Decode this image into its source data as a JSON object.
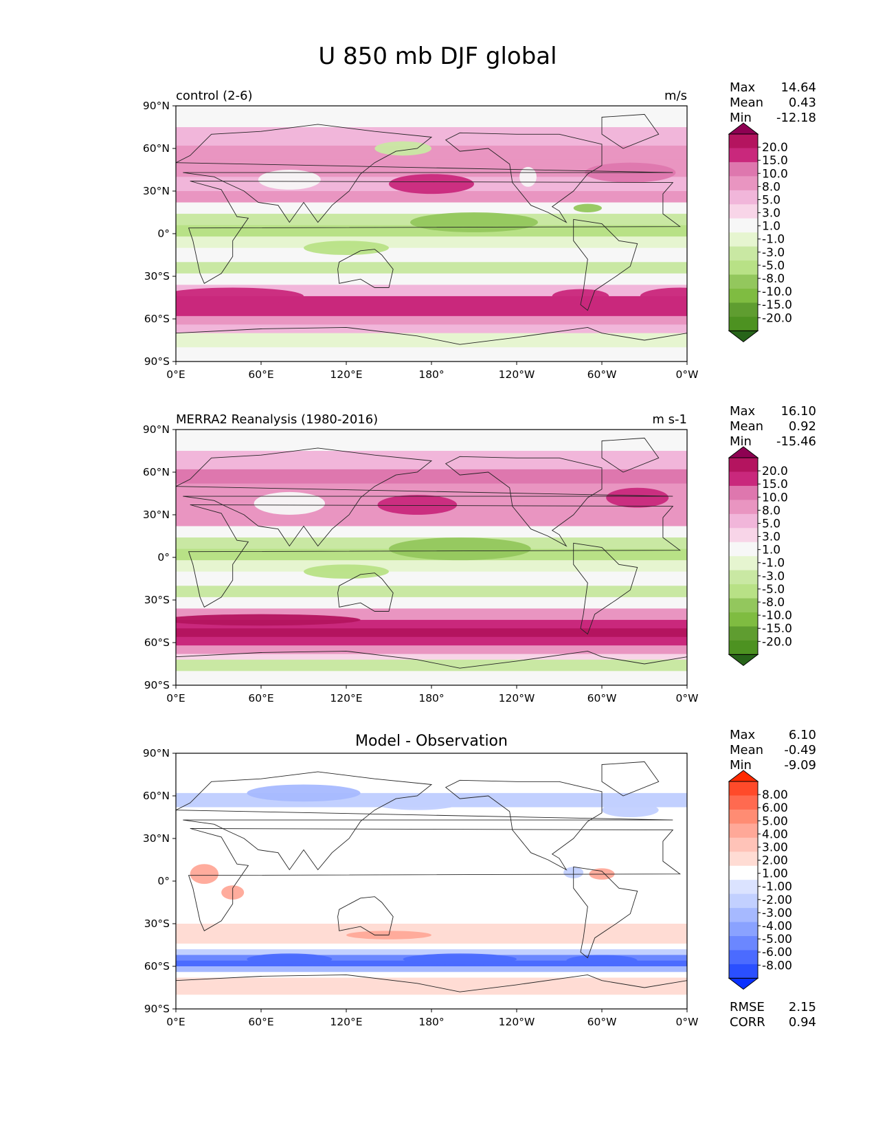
{
  "title": "U 850 mb DJF global",
  "chart_data": [
    {
      "type": "heatmap",
      "name": "control",
      "title_left": "control (2-6)",
      "title_right": "m/s",
      "lon_ticks": [
        "0°E",
        "60°E",
        "120°E",
        "180°",
        "120°W",
        "60°W",
        "0°W"
      ],
      "lat_ticks": [
        "90°N",
        "60°N",
        "30°N",
        "0°",
        "30°S",
        "60°S",
        "90°S"
      ],
      "xlim": [
        0,
        360
      ],
      "ylim": [
        -90,
        90
      ],
      "stats": [
        {
          "label": "Max",
          "value": "14.64"
        },
        {
          "label": "Mean",
          "value": "0.43"
        },
        {
          "label": "Min",
          "value": "-12.18"
        }
      ],
      "colorbar": {
        "levels": [
          "20.0",
          "15.0",
          "10.0",
          "8.0",
          "5.0",
          "3.0",
          "1.0",
          "-1.0",
          "-3.0",
          "-5.0",
          "-8.0",
          "-10.0",
          "-15.0",
          "-20.0"
        ],
        "colors": [
          "#8e0152",
          "#b4145f",
          "#c9287c",
          "#de77ae",
          "#e995c1",
          "#f1b6da",
          "#f8d5e8",
          "#f7f7f7",
          "#e6f5d0",
          "#c9e8a3",
          "#b8e186",
          "#93c75d",
          "#7fbc41",
          "#5f9d30",
          "#4d9221",
          "#276419"
        ]
      }
    },
    {
      "type": "heatmap",
      "name": "observation",
      "title_left": "MERRA2 Reanalysis (1980-2016)",
      "title_right": "m s-1",
      "lon_ticks": [
        "0°E",
        "60°E",
        "120°E",
        "180°",
        "120°W",
        "60°W",
        "0°W"
      ],
      "lat_ticks": [
        "90°N",
        "60°N",
        "30°N",
        "0°",
        "30°S",
        "60°S",
        "90°S"
      ],
      "xlim": [
        0,
        360
      ],
      "ylim": [
        -90,
        90
      ],
      "stats": [
        {
          "label": "Max",
          "value": "16.10"
        },
        {
          "label": "Mean",
          "value": "0.92"
        },
        {
          "label": "Min",
          "value": "-15.46"
        }
      ],
      "colorbar": {
        "levels": [
          "20.0",
          "15.0",
          "10.0",
          "8.0",
          "5.0",
          "3.0",
          "1.0",
          "-1.0",
          "-3.0",
          "-5.0",
          "-8.0",
          "-10.0",
          "-15.0",
          "-20.0"
        ],
        "colors": [
          "#8e0152",
          "#b4145f",
          "#c9287c",
          "#de77ae",
          "#e995c1",
          "#f1b6da",
          "#f8d5e8",
          "#f7f7f7",
          "#e6f5d0",
          "#c9e8a3",
          "#b8e186",
          "#93c75d",
          "#7fbc41",
          "#5f9d30",
          "#4d9221",
          "#276419"
        ]
      }
    },
    {
      "type": "heatmap",
      "name": "difference",
      "title_center": "Model - Observation",
      "lon_ticks": [
        "0°E",
        "60°E",
        "120°E",
        "180°",
        "120°W",
        "60°W",
        "0°W"
      ],
      "lat_ticks": [
        "90°N",
        "60°N",
        "30°N",
        "0°",
        "30°S",
        "60°S",
        "90°S"
      ],
      "xlim": [
        0,
        360
      ],
      "ylim": [
        -90,
        90
      ],
      "stats": [
        {
          "label": "Max",
          "value": "6.10"
        },
        {
          "label": "Mean",
          "value": "-0.49"
        },
        {
          "label": "Min",
          "value": "-9.09"
        }
      ],
      "extra_stats": [
        {
          "label": "RMSE",
          "value": "2.15"
        },
        {
          "label": "CORR",
          "value": "0.94"
        }
      ],
      "colorbar": {
        "levels": [
          "8.00",
          "6.00",
          "5.00",
          "4.00",
          "3.00",
          "2.00",
          "1.00",
          "-1.00",
          "-2.00",
          "-3.00",
          "-4.00",
          "-5.00",
          "-6.00",
          "-8.00"
        ],
        "colors": [
          "#ff2a00",
          "#ff4a2a",
          "#ff6a50",
          "#ff8c73",
          "#ffa898",
          "#ffc3b8",
          "#ffdcd4",
          "#ffffff",
          "#dbe3ff",
          "#c2d0ff",
          "#a6b9ff",
          "#8aa2ff",
          "#6b87ff",
          "#4b6bff",
          "#2a4fff",
          "#0a30ff"
        ]
      }
    }
  ]
}
